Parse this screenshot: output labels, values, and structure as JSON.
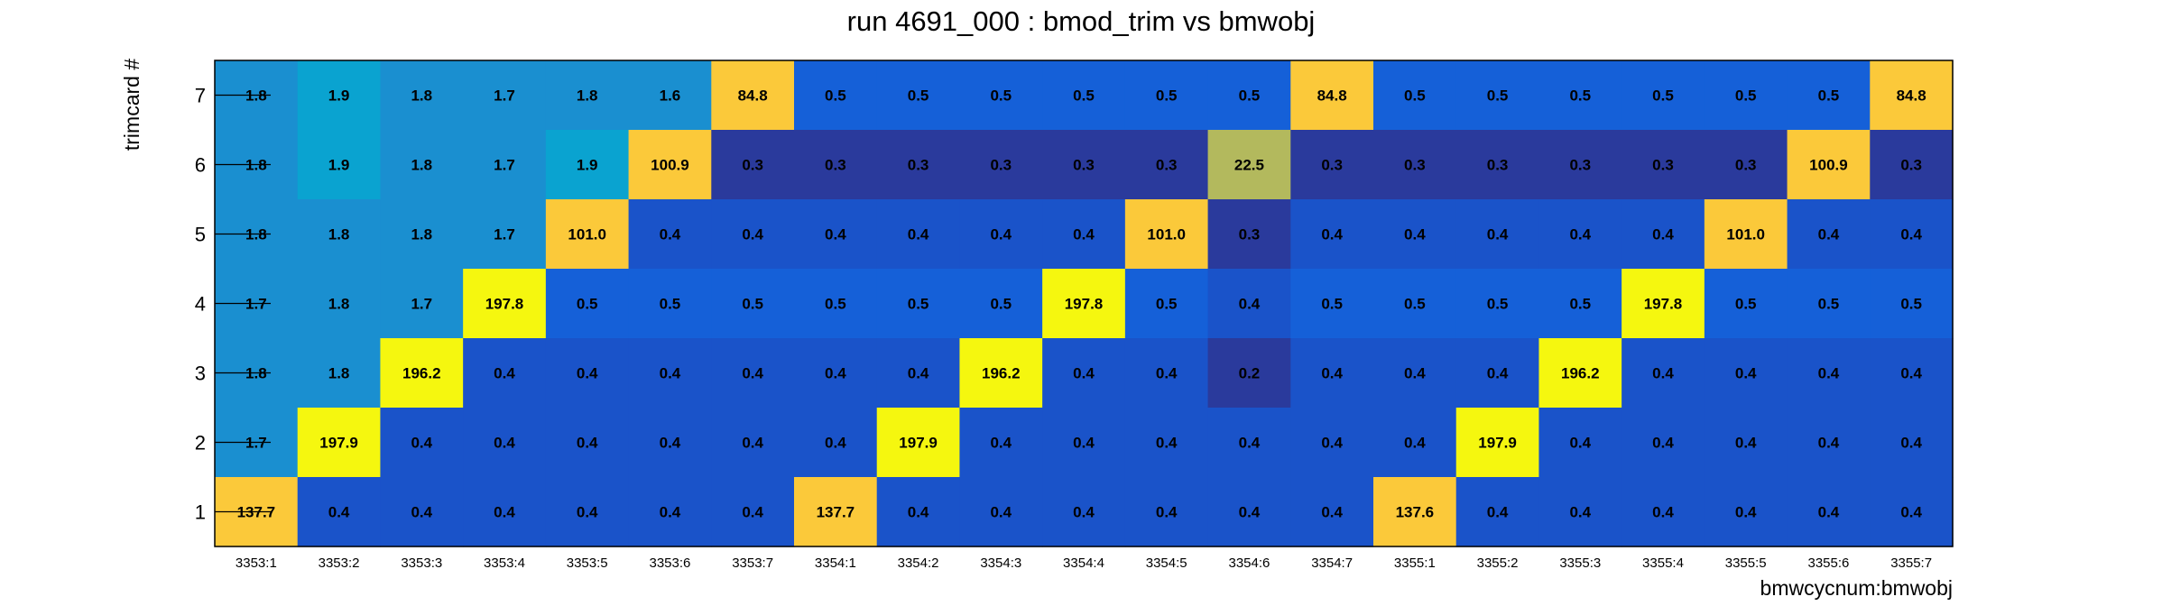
{
  "chart_data": {
    "type": "heatmap",
    "title": "run 4691_000 : bmod_trim vs bmwobj",
    "xlabel": "bmwcycnum:bmwobj",
    "ylabel": "trimcard #",
    "x_categories": [
      "3353:1",
      "3353:2",
      "3353:3",
      "3353:4",
      "3353:5",
      "3353:6",
      "3353:7",
      "3354:1",
      "3354:2",
      "3354:3",
      "3354:4",
      "3354:5",
      "3354:6",
      "3354:7",
      "3355:1",
      "3355:2",
      "3355:3",
      "3355:4",
      "3355:5",
      "3355:6",
      "3355:7"
    ],
    "y_categories": [
      "1",
      "2",
      "3",
      "4",
      "5",
      "6",
      "7"
    ],
    "rows": [
      {
        "y": "7",
        "values": [
          "1.8",
          "1.9",
          "1.8",
          "1.7",
          "1.8",
          "1.6",
          "84.8",
          "0.5",
          "0.5",
          "0.5",
          "0.5",
          "0.5",
          "0.5",
          "84.8",
          "0.5",
          "0.5",
          "0.5",
          "0.5",
          "0.5",
          "0.5",
          "84.8"
        ]
      },
      {
        "y": "6",
        "values": [
          "1.8",
          "1.9",
          "1.8",
          "1.7",
          "1.9",
          "100.9",
          "0.3",
          "0.3",
          "0.3",
          "0.3",
          "0.3",
          "0.3",
          "22.5",
          "0.3",
          "0.3",
          "0.3",
          "0.3",
          "0.3",
          "0.3",
          "100.9",
          "0.3"
        ]
      },
      {
        "y": "5",
        "values": [
          "1.8",
          "1.8",
          "1.8",
          "1.7",
          "101.0",
          "0.4",
          "0.4",
          "0.4",
          "0.4",
          "0.4",
          "0.4",
          "101.0",
          "0.3",
          "0.4",
          "0.4",
          "0.4",
          "0.4",
          "0.4",
          "101.0",
          "0.4",
          "0.4"
        ]
      },
      {
        "y": "4",
        "values": [
          "1.7",
          "1.8",
          "1.7",
          "197.8",
          "0.5",
          "0.5",
          "0.5",
          "0.5",
          "0.5",
          "0.5",
          "197.8",
          "0.5",
          "0.4",
          "0.5",
          "0.5",
          "0.5",
          "0.5",
          "197.8",
          "0.5",
          "0.5",
          "0.5"
        ]
      },
      {
        "y": "3",
        "values": [
          "1.8",
          "1.8",
          "196.2",
          "0.4",
          "0.4",
          "0.4",
          "0.4",
          "0.4",
          "0.4",
          "196.2",
          "0.4",
          "0.4",
          "0.2",
          "0.4",
          "0.4",
          "0.4",
          "196.2",
          "0.4",
          "0.4",
          "0.4",
          "0.4"
        ]
      },
      {
        "y": "2",
        "values": [
          "1.7",
          "197.9",
          "0.4",
          "0.4",
          "0.4",
          "0.4",
          "0.4",
          "0.4",
          "197.9",
          "0.4",
          "0.4",
          "0.4",
          "0.4",
          "0.4",
          "0.4",
          "197.9",
          "0.4",
          "0.4",
          "0.4",
          "0.4",
          "0.4"
        ]
      },
      {
        "y": "1",
        "values": [
          "137.7",
          "0.4",
          "0.4",
          "0.4",
          "0.4",
          "0.4",
          "0.4",
          "137.7",
          "0.4",
          "0.4",
          "0.4",
          "0.4",
          "0.4",
          "0.4",
          "137.6",
          "0.4",
          "0.4",
          "0.4",
          "0.4",
          "0.4",
          "0.4"
        ]
      }
    ],
    "colormap": "parula",
    "colors": {
      "very_low": "#2a3a9c",
      "low": "#1a53c9",
      "low_mid": "#1560d8",
      "mid": "#1a8fd0",
      "mid_high": "#0aa3d0",
      "yellow_olive": "#b3b95d",
      "orange": "#fbc93a",
      "high": "#f5f70f"
    },
    "legend": "none",
    "grid": false
  }
}
